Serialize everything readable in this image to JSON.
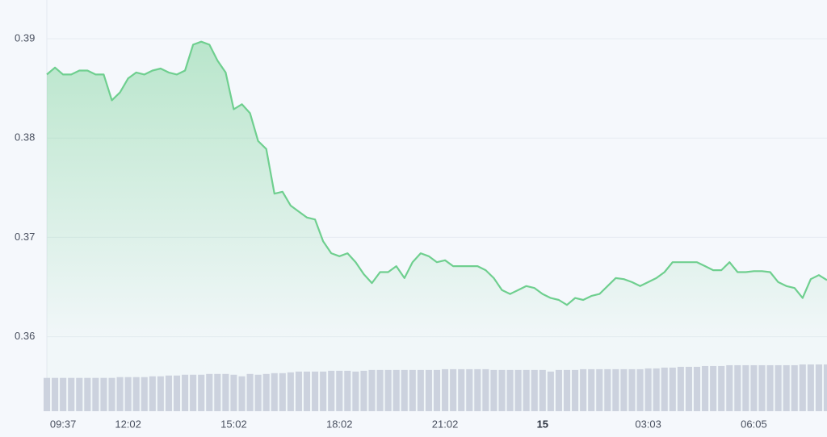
{
  "chart_data": {
    "type": "line",
    "categories": [
      null,
      null,
      "09:37",
      null,
      null,
      null,
      null,
      null,
      null,
      null,
      "12:02",
      null,
      null,
      null,
      null,
      null,
      null,
      null,
      null,
      null,
      null,
      null,
      null,
      "15:02",
      null,
      null,
      null,
      null,
      null,
      null,
      null,
      null,
      null,
      null,
      null,
      null,
      "18:02",
      null,
      null,
      null,
      null,
      null,
      null,
      null,
      null,
      null,
      null,
      null,
      null,
      "21:02",
      null,
      null,
      null,
      null,
      null,
      null,
      null,
      null,
      null,
      null,
      null,
      "15",
      null,
      null,
      null,
      null,
      null,
      null,
      null,
      null,
      null,
      null,
      null,
      null,
      "03:03",
      null,
      null,
      null,
      null,
      null,
      null,
      null,
      null,
      null,
      null,
      null,
      null,
      "06:05",
      null,
      null,
      null,
      null,
      null,
      null,
      null,
      null,
      null
    ],
    "values": [
      0.3864,
      0.3871,
      0.3864,
      0.3864,
      0.3868,
      0.3868,
      0.3864,
      0.3864,
      0.3838,
      0.3846,
      0.386,
      0.3866,
      0.3864,
      0.3868,
      0.387,
      0.3866,
      0.3864,
      0.3868,
      0.3894,
      0.3897,
      0.3894,
      0.3878,
      0.3866,
      0.3829,
      0.3834,
      0.3825,
      0.3797,
      0.3789,
      0.3744,
      0.3746,
      0.3732,
      0.3726,
      0.372,
      0.3718,
      0.3696,
      0.3684,
      0.3681,
      0.3684,
      0.3675,
      0.3663,
      0.3654,
      0.3665,
      0.3665,
      0.3671,
      0.3659,
      0.3675,
      0.3684,
      0.3681,
      0.3675,
      0.3677,
      0.3671,
      0.3671,
      0.3671,
      0.3671,
      0.3667,
      0.3659,
      0.3647,
      0.3643,
      0.3647,
      0.3651,
      0.3649,
      0.3643,
      0.3639,
      0.3637,
      0.3632,
      0.3639,
      0.3637,
      0.3641,
      0.3643,
      0.3651,
      0.3659,
      0.3658,
      0.3655,
      0.3651,
      0.3655,
      0.3659,
      0.3665,
      0.3675,
      0.3675,
      0.3675,
      0.3675,
      0.3671,
      0.3667,
      0.3667,
      0.3675,
      0.3665,
      0.3665,
      0.3666,
      0.3666,
      0.3665,
      0.3655,
      0.3651,
      0.3649,
      0.3639,
      0.3658,
      0.3662,
      0.3657
    ],
    "volume": [
      42,
      42,
      42,
      42,
      42,
      42,
      42,
      42,
      42,
      43,
      43,
      43,
      43,
      44,
      44,
      45,
      45,
      46,
      46,
      46,
      47,
      47,
      47,
      46,
      44,
      47,
      46,
      47,
      48,
      48,
      49,
      50,
      50,
      50,
      50,
      51,
      51,
      51,
      50,
      51,
      52,
      52,
      52,
      52,
      52,
      52,
      52,
      52,
      52,
      53,
      53,
      53,
      53,
      53,
      53,
      52,
      52,
      52,
      52,
      52,
      52,
      52,
      50,
      52,
      52,
      52,
      53,
      53,
      53,
      53,
      53,
      53,
      53,
      53,
      54,
      54,
      55,
      55,
      56,
      56,
      56,
      57,
      57,
      57,
      58,
      58,
      58,
      58,
      58,
      58,
      58,
      58,
      58,
      59,
      59,
      59,
      59
    ],
    "color": "#6fcf8f",
    "volume_color": "#ccd2de",
    "ylim": [
      0.3525,
      0.3939
    ],
    "yticks": [
      0.36,
      0.37,
      0.38,
      0.39
    ],
    "grid": true
  }
}
